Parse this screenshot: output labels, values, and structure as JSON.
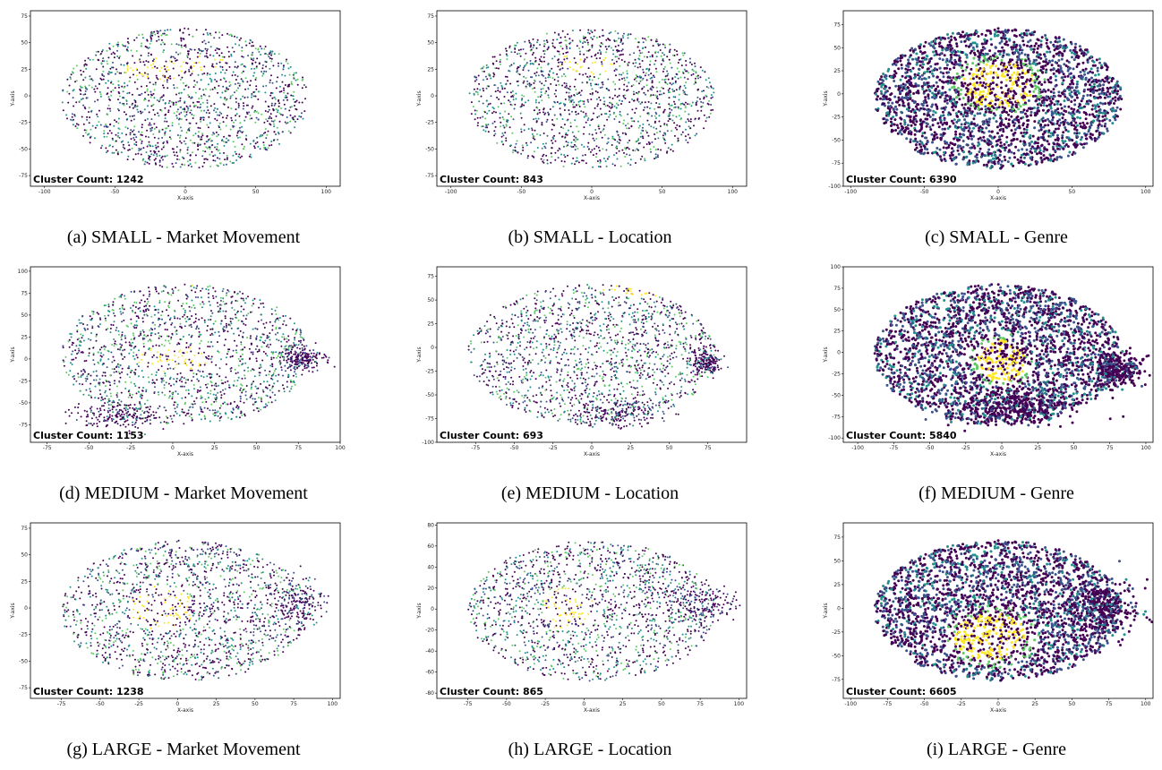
{
  "colormap": [
    "#440154",
    "#3b528b",
    "#21918c",
    "#5ec962",
    "#fde725"
  ],
  "chart_data": [
    {
      "type": "scatter",
      "caption": "(a) SMALL - Market Movement",
      "xlabel": "X-axis",
      "ylabel": "Y-axis",
      "xlim": [
        -110,
        110
      ],
      "ylim": [
        -85,
        80
      ],
      "xticks": [
        -100,
        -50,
        0,
        50,
        100
      ],
      "yticks": [
        -75,
        -50,
        -25,
        0,
        25,
        50,
        75
      ],
      "annotation": "Cluster Count: 1242",
      "cluster_count": 1242,
      "density": "sparse",
      "hot": [
        [
          -20,
          25,
          28,
          14
        ],
        [
          10,
          30,
          22,
          10
        ]
      ],
      "extra": []
    },
    {
      "type": "scatter",
      "caption": "(b) SMALL - Location",
      "xlabel": "X-axis",
      "ylabel": "Y-axis",
      "xlim": [
        -110,
        110
      ],
      "ylim": [
        -85,
        80
      ],
      "xticks": [
        -100,
        -50,
        0,
        50,
        100
      ],
      "yticks": [
        -75,
        -50,
        -25,
        0,
        25,
        50,
        75
      ],
      "annotation": "Cluster Count: 843",
      "cluster_count": 843,
      "density": "sparse",
      "hot": [
        [
          -5,
          30,
          30,
          12
        ]
      ],
      "extra": []
    },
    {
      "type": "scatter",
      "caption": "(c) SMALL - Genre",
      "xlabel": "X-axis",
      "ylabel": "Y-axis",
      "xlim": [
        -105,
        105
      ],
      "ylim": [
        -100,
        90
      ],
      "xticks": [
        -100,
        -50,
        0,
        50,
        100
      ],
      "yticks": [
        -100,
        -75,
        -50,
        -25,
        0,
        25,
        50,
        75
      ],
      "annotation": "Cluster Count: 6390",
      "cluster_count": 6390,
      "density": "dense",
      "hot": [
        [
          0,
          10,
          30,
          30
        ]
      ],
      "extra": []
    },
    {
      "type": "scatter",
      "caption": "(d) MEDIUM - Market Movement",
      "xlabel": "X-axis",
      "ylabel": "Y-axis",
      "xlim": [
        -85,
        100
      ],
      "ylim": [
        -95,
        105
      ],
      "xticks": [
        -75,
        -50,
        -25,
        0,
        25,
        50,
        75,
        100
      ],
      "yticks": [
        -75,
        -50,
        -25,
        0,
        25,
        50,
        75,
        100
      ],
      "annotation": "Cluster Count: 1153",
      "cluster_count": 1153,
      "density": "sparse",
      "hot": [
        [
          0,
          0,
          25,
          18
        ],
        [
          15,
          90,
          18,
          8
        ]
      ],
      "extra": [
        [
          78,
          0,
          13,
          13
        ],
        [
          -35,
          -65,
          25,
          15
        ]
      ]
    },
    {
      "type": "scatter",
      "caption": "(e) MEDIUM - Location",
      "xlabel": "X-axis",
      "ylabel": "Y-axis",
      "xlim": [
        -100,
        100
      ],
      "ylim": [
        -100,
        85
      ],
      "xticks": [
        -75,
        -50,
        -25,
        0,
        25,
        50,
        75
      ],
      "yticks": [
        -100,
        -75,
        -50,
        -25,
        0,
        25,
        50,
        75
      ],
      "annotation": "Cluster Count: 693",
      "cluster_count": 693,
      "density": "sparse",
      "hot": [
        [
          30,
          60,
          30,
          10
        ]
      ],
      "extra": [
        [
          75,
          -15,
          10,
          13
        ],
        [
          15,
          -70,
          30,
          14
        ]
      ]
    },
    {
      "type": "scatter",
      "caption": "(f) MEDIUM - Genre",
      "xlabel": "X-axis",
      "ylabel": "Y-axis",
      "xlim": [
        -110,
        105
      ],
      "ylim": [
        -105,
        100
      ],
      "xticks": [
        -100,
        -75,
        -50,
        -25,
        0,
        25,
        50,
        75,
        100
      ],
      "yticks": [
        -100,
        -75,
        -50,
        -25,
        0,
        25,
        50,
        75,
        100
      ],
      "annotation": "Cluster Count: 5840",
      "cluster_count": 5840,
      "density": "dense",
      "hot": [
        [
          0,
          -10,
          20,
          30
        ]
      ],
      "extra": [
        [
          80,
          -20,
          18,
          20
        ],
        [
          10,
          -65,
          45,
          20
        ]
      ]
    },
    {
      "type": "scatter",
      "caption": "(g) LARGE - Market Movement",
      "xlabel": "X-axis",
      "ylabel": "Y-axis",
      "xlim": [
        -95,
        105
      ],
      "ylim": [
        -85,
        80
      ],
      "xticks": [
        -75,
        -50,
        -25,
        0,
        25,
        50,
        75,
        100
      ],
      "yticks": [
        -75,
        -50,
        -25,
        0,
        25,
        50,
        75
      ],
      "annotation": "Cluster Count: 1238",
      "cluster_count": 1238,
      "density": "sparse",
      "hot": [
        [
          -10,
          0,
          25,
          25
        ]
      ],
      "extra": [
        [
          78,
          5,
          15,
          25
        ]
      ]
    },
    {
      "type": "scatter",
      "caption": "(h) LARGE - Location",
      "xlabel": "X-axis",
      "ylabel": "Y-axis",
      "xlim": [
        -95,
        105
      ],
      "ylim": [
        -85,
        82
      ],
      "xticks": [
        -75,
        -50,
        -25,
        0,
        25,
        50,
        75,
        100
      ],
      "yticks": [
        -80,
        -60,
        -40,
        -20,
        0,
        20,
        40,
        60,
        80
      ],
      "annotation": "Cluster Count: 865",
      "cluster_count": 865,
      "density": "sparse",
      "hot": [
        [
          -10,
          0,
          20,
          25
        ]
      ],
      "extra": [
        [
          75,
          5,
          25,
          18
        ]
      ]
    },
    {
      "type": "scatter",
      "caption": "(i) LARGE - Genre",
      "xlabel": "X-axis",
      "ylabel": "Y-axis",
      "xlim": [
        -105,
        105
      ],
      "ylim": [
        -95,
        90
      ],
      "xticks": [
        -100,
        -75,
        -50,
        -25,
        0,
        25,
        50,
        75,
        100
      ],
      "yticks": [
        -75,
        -50,
        -25,
        0,
        25,
        50,
        75
      ],
      "annotation": "Cluster Count: 6605",
      "cluster_count": 6605,
      "density": "dense",
      "hot": [
        [
          -5,
          -30,
          30,
          30
        ]
      ],
      "extra": [
        [
          70,
          0,
          25,
          35
        ]
      ]
    }
  ]
}
